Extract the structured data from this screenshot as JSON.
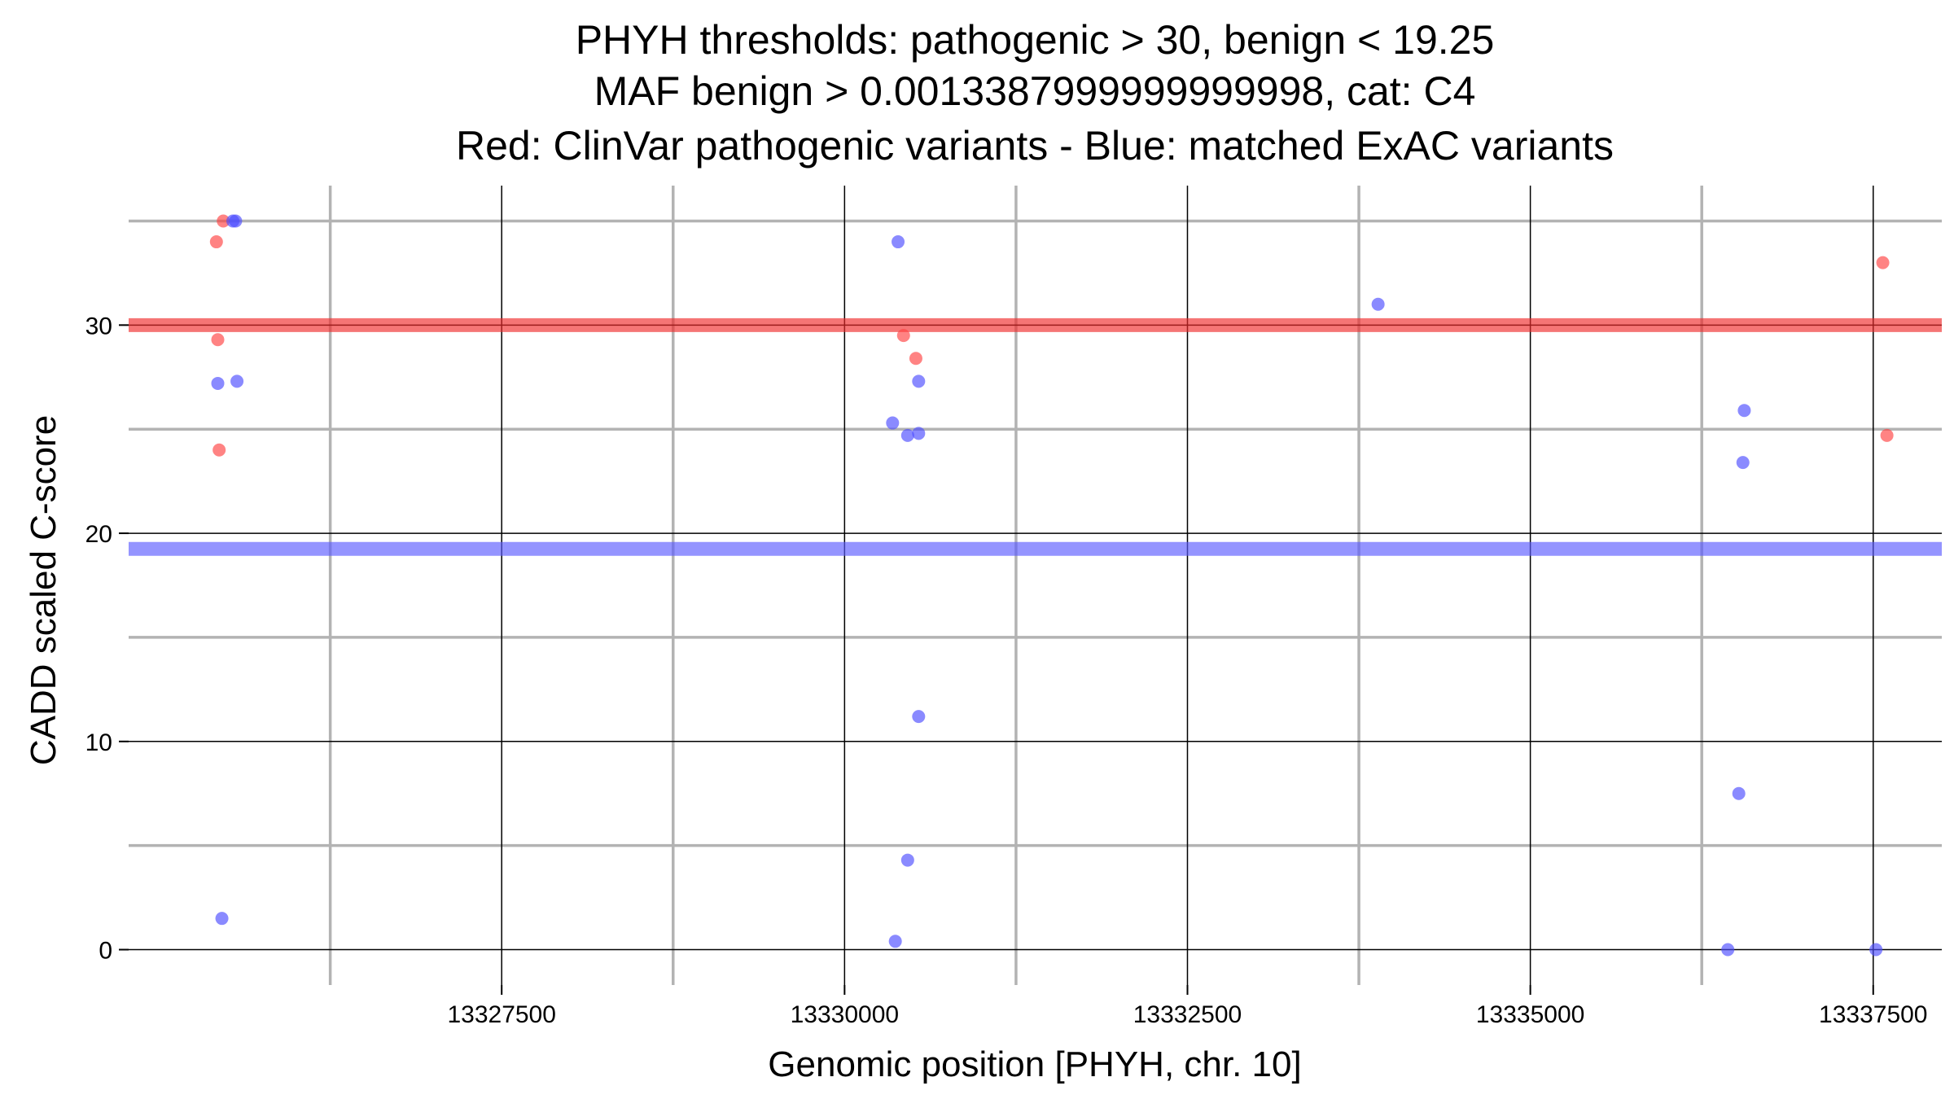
{
  "chart_data": {
    "type": "scatter",
    "title_lines": [
      "PHYH thresholds: pathogenic > 30, benign < 19.25",
      "MAF benign > 0.0013387999999999998, cat: C4",
      "Red: ClinVar pathogenic variants - Blue: matched ExAC variants"
    ],
    "xlabel": "Genomic position [PHYH, chr. 10]",
    "ylabel": "CADD scaled C-score",
    "xlim": [
      13324780,
      13338000
    ],
    "ylim": [
      -1.7,
      36.7
    ],
    "x_major_ticks": [
      13327500,
      13330000,
      13332500,
      13335000,
      13337500
    ],
    "x_tick_labels": [
      "13327500",
      "13330000",
      "13332500",
      "13335000",
      "13337500"
    ],
    "x_minor_ticks": [
      13326250,
      13328750,
      13331250,
      13333750,
      13336250
    ],
    "y_major_ticks": [
      0,
      10,
      20,
      30
    ],
    "y_tick_labels": [
      "0",
      "10",
      "20",
      "30"
    ],
    "y_minor_ticks": [
      5,
      15,
      25,
      35
    ],
    "thresholds": [
      {
        "name": "pathogenic",
        "value": 30,
        "color": "#ef2b2b"
      },
      {
        "name": "benign",
        "value": 19.25,
        "color": "#5a5aff"
      }
    ],
    "series": [
      {
        "name": "ClinVar pathogenic variants",
        "color": "#ff4040",
        "points": [
          [
            13325470,
            35
          ],
          [
            13325420,
            34
          ],
          [
            13325430,
            29.3
          ],
          [
            13325440,
            24
          ],
          [
            13330430,
            29.5
          ],
          [
            13330520,
            28.4
          ],
          [
            13337570,
            33
          ],
          [
            13337600,
            24.7
          ]
        ]
      },
      {
        "name": "matched ExAC variants",
        "color": "#4b4bff",
        "points": [
          [
            13325560,
            35
          ],
          [
            13325540,
            35
          ],
          [
            13325430,
            27.2
          ],
          [
            13325570,
            27.3
          ],
          [
            13325460,
            1.5
          ],
          [
            13330390,
            34
          ],
          [
            13330540,
            27.3
          ],
          [
            13330350,
            25.3
          ],
          [
            13330460,
            24.7
          ],
          [
            13330540,
            24.8
          ],
          [
            13330540,
            11.2
          ],
          [
            13330460,
            4.3
          ],
          [
            13330370,
            0.4
          ],
          [
            13333890,
            31
          ],
          [
            13336560,
            25.9
          ],
          [
            13336550,
            23.4
          ],
          [
            13336520,
            7.5
          ],
          [
            13336440,
            0
          ],
          [
            13337520,
            0
          ]
        ]
      }
    ]
  }
}
